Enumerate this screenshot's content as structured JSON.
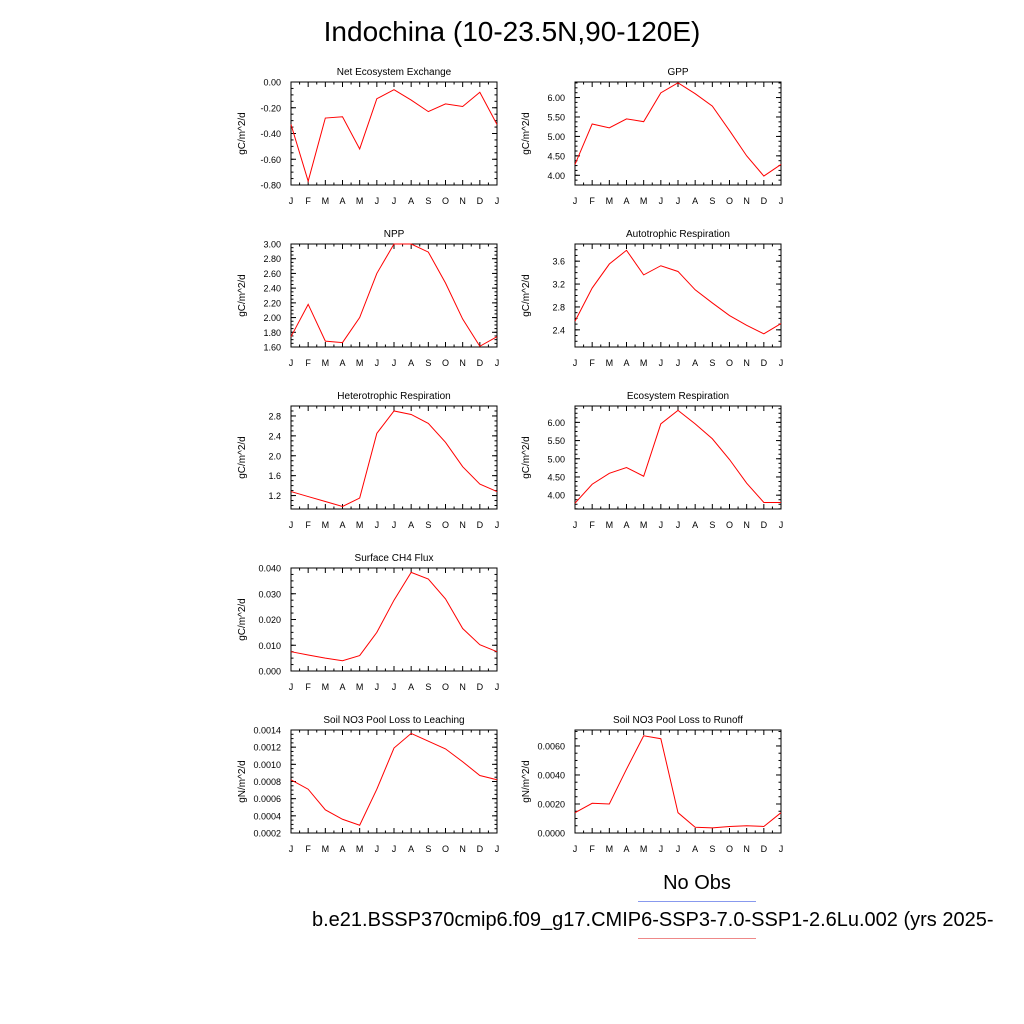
{
  "page_title": "Indochina (10-23.5N,90-120E)",
  "legend": {
    "obs_label": "No Obs",
    "model_label": "b.e21.BSSP370cmip6.f09_g17.CMIP6-SSP3-7.0-SSP1-2.6Lu.002 (yrs 2025-",
    "obs_color": "#8899ee",
    "model_color": "#ee8888"
  },
  "chart_data": [
    {
      "type": "line",
      "title": "Net Ecosystem Exchange",
      "ylabel": "gC/m^2/d",
      "categories": [
        "J",
        "F",
        "M",
        "A",
        "M",
        "J",
        "J",
        "A",
        "S",
        "O",
        "N",
        "D",
        "J"
      ],
      "series": [
        {
          "color": "#ff0000",
          "values": [
            -0.33,
            -0.77,
            -0.28,
            -0.27,
            -0.52,
            -0.13,
            -0.06,
            -0.14,
            -0.23,
            -0.17,
            -0.19,
            -0.08,
            -0.33
          ]
        }
      ],
      "ylim": [
        -0.8,
        0.0
      ],
      "yticks": [
        -0.8,
        -0.6,
        -0.4,
        -0.2,
        0.0
      ],
      "ytick_labels": [
        "-0.80",
        "-0.60",
        "-0.40",
        "-0.20",
        "0.00"
      ],
      "grid": false
    },
    {
      "type": "line",
      "title": "GPP",
      "ylabel": "gC/m^2/d",
      "categories": [
        "J",
        "F",
        "M",
        "A",
        "M",
        "J",
        "J",
        "A",
        "S",
        "O",
        "N",
        "D",
        "J"
      ],
      "series": [
        {
          "color": "#ff0000",
          "values": [
            4.28,
            5.32,
            5.22,
            5.45,
            5.38,
            6.12,
            6.38,
            6.1,
            5.78,
            5.15,
            4.5,
            3.98,
            4.28
          ]
        }
      ],
      "ylim": [
        3.75,
        6.4
      ],
      "yticks": [
        4.0,
        4.5,
        5.0,
        5.5,
        6.0
      ],
      "ytick_labels": [
        "4.00",
        "4.50",
        "5.00",
        "5.50",
        "6.00"
      ],
      "grid": false
    },
    {
      "type": "line",
      "title": "NPP",
      "ylabel": "gC/m^2/d",
      "categories": [
        "J",
        "F",
        "M",
        "A",
        "M",
        "J",
        "J",
        "A",
        "S",
        "O",
        "N",
        "D",
        "J"
      ],
      "series": [
        {
          "color": "#ff0000",
          "values": [
            1.74,
            2.18,
            1.68,
            1.66,
            2.0,
            2.6,
            3.0,
            3.0,
            2.89,
            2.47,
            1.98,
            1.61,
            1.74
          ]
        }
      ],
      "ylim": [
        1.6,
        3.0
      ],
      "yticks": [
        1.6,
        1.8,
        2.0,
        2.2,
        2.4,
        2.6,
        2.8,
        3.0
      ],
      "ytick_labels": [
        "1.60",
        "1.80",
        "2.00",
        "2.20",
        "2.40",
        "2.60",
        "2.80",
        "3.00"
      ],
      "grid": false
    },
    {
      "type": "line",
      "title": "Autotrophic Respiration",
      "ylabel": "gC/m^2/d",
      "categories": [
        "J",
        "F",
        "M",
        "A",
        "M",
        "J",
        "J",
        "A",
        "S",
        "O",
        "N",
        "D",
        "J"
      ],
      "series": [
        {
          "color": "#ff0000",
          "values": [
            2.55,
            3.13,
            3.55,
            3.79,
            3.36,
            3.52,
            3.42,
            3.1,
            2.87,
            2.65,
            2.48,
            2.33,
            2.51
          ]
        }
      ],
      "ylim": [
        2.1,
        3.9
      ],
      "yticks": [
        2.4,
        2.8,
        3.2,
        3.6
      ],
      "ytick_labels": [
        "2.4",
        "2.8",
        "3.2",
        "3.6"
      ],
      "grid": false
    },
    {
      "type": "line",
      "title": "Heterotrophic Respiration",
      "ylabel": "gC/m^2/d",
      "categories": [
        "J",
        "F",
        "M",
        "A",
        "M",
        "J",
        "J",
        "A",
        "S",
        "O",
        "N",
        "D",
        "J"
      ],
      "series": [
        {
          "color": "#ff0000",
          "values": [
            1.28,
            1.18,
            1.08,
            0.98,
            1.15,
            2.45,
            2.9,
            2.83,
            2.65,
            2.27,
            1.78,
            1.43,
            1.28
          ]
        }
      ],
      "ylim": [
        0.93,
        3.0
      ],
      "yticks": [
        1.2,
        1.6,
        2.0,
        2.4,
        2.8
      ],
      "ytick_labels": [
        "1.2",
        "1.6",
        "2.0",
        "2.4",
        "2.8"
      ],
      "grid": false
    },
    {
      "type": "line",
      "title": "Ecosystem Respiration",
      "ylabel": "gC/m^2/d",
      "categories": [
        "J",
        "F",
        "M",
        "A",
        "M",
        "J",
        "J",
        "A",
        "S",
        "O",
        "N",
        "D",
        "J"
      ],
      "series": [
        {
          "color": "#ff0000",
          "values": [
            3.78,
            4.3,
            4.6,
            4.76,
            4.52,
            5.96,
            6.33,
            5.96,
            5.55,
            4.98,
            4.33,
            3.8,
            3.8
          ]
        }
      ],
      "ylim": [
        3.62,
        6.45
      ],
      "yticks": [
        4.0,
        4.5,
        5.0,
        5.5,
        6.0
      ],
      "ytick_labels": [
        "4.00",
        "4.50",
        "5.00",
        "5.50",
        "6.00"
      ],
      "grid": false
    },
    {
      "type": "line",
      "title": "Surface CH4 Flux",
      "ylabel": "gC/m^2/d",
      "categories": [
        "J",
        "F",
        "M",
        "A",
        "M",
        "J",
        "J",
        "A",
        "S",
        "O",
        "N",
        "D",
        "J"
      ],
      "series": [
        {
          "color": "#ff0000",
          "values": [
            0.0075,
            0.0062,
            0.005,
            0.004,
            0.006,
            0.015,
            0.0275,
            0.0383,
            0.0357,
            0.028,
            0.0165,
            0.0102,
            0.0075
          ]
        }
      ],
      "ylim": [
        0.0,
        0.04
      ],
      "yticks": [
        0.0,
        0.01,
        0.02,
        0.03,
        0.04
      ],
      "ytick_labels": [
        "0.000",
        "0.010",
        "0.020",
        "0.030",
        "0.040"
      ],
      "grid": false
    },
    {
      "type": "line",
      "title": "Soil NO3 Pool Loss to Leaching",
      "ylabel": "gN/m^2/d",
      "categories": [
        "J",
        "F",
        "M",
        "A",
        "M",
        "J",
        "J",
        "A",
        "S",
        "O",
        "N",
        "D",
        "J"
      ],
      "series": [
        {
          "color": "#ff0000",
          "values": [
            0.00082,
            0.00071,
            0.00047,
            0.00036,
            0.00029,
            0.00071,
            0.00119,
            0.00136,
            0.00127,
            0.00118,
            0.00103,
            0.00087,
            0.00082
          ]
        }
      ],
      "ylim": [
        0.0002,
        0.0014
      ],
      "yticks": [
        0.0002,
        0.0004,
        0.0006,
        0.0008,
        0.001,
        0.0012,
        0.0014
      ],
      "ytick_labels": [
        "0.0002",
        "0.0004",
        "0.0006",
        "0.0008",
        "0.0010",
        "0.0012",
        "0.0014"
      ],
      "grid": false
    },
    {
      "type": "line",
      "title": "Soil NO3 Pool Loss to Runoff",
      "ylabel": "gN/m^2/d",
      "categories": [
        "J",
        "F",
        "M",
        "A",
        "M",
        "J",
        "J",
        "A",
        "S",
        "O",
        "N",
        "D",
        "J"
      ],
      "series": [
        {
          "color": "#ff0000",
          "values": [
            0.0014,
            0.00205,
            0.002,
            0.0044,
            0.0067,
            0.0065,
            0.0014,
            0.0004,
            0.00035,
            0.00045,
            0.0005,
            0.00045,
            0.0014
          ]
        }
      ],
      "ylim": [
        0.0,
        0.0071
      ],
      "yticks": [
        0.0,
        0.002,
        0.004,
        0.006
      ],
      "ytick_labels": [
        "0.0000",
        "0.0020",
        "0.0040",
        "0.0060"
      ],
      "grid": false
    }
  ]
}
